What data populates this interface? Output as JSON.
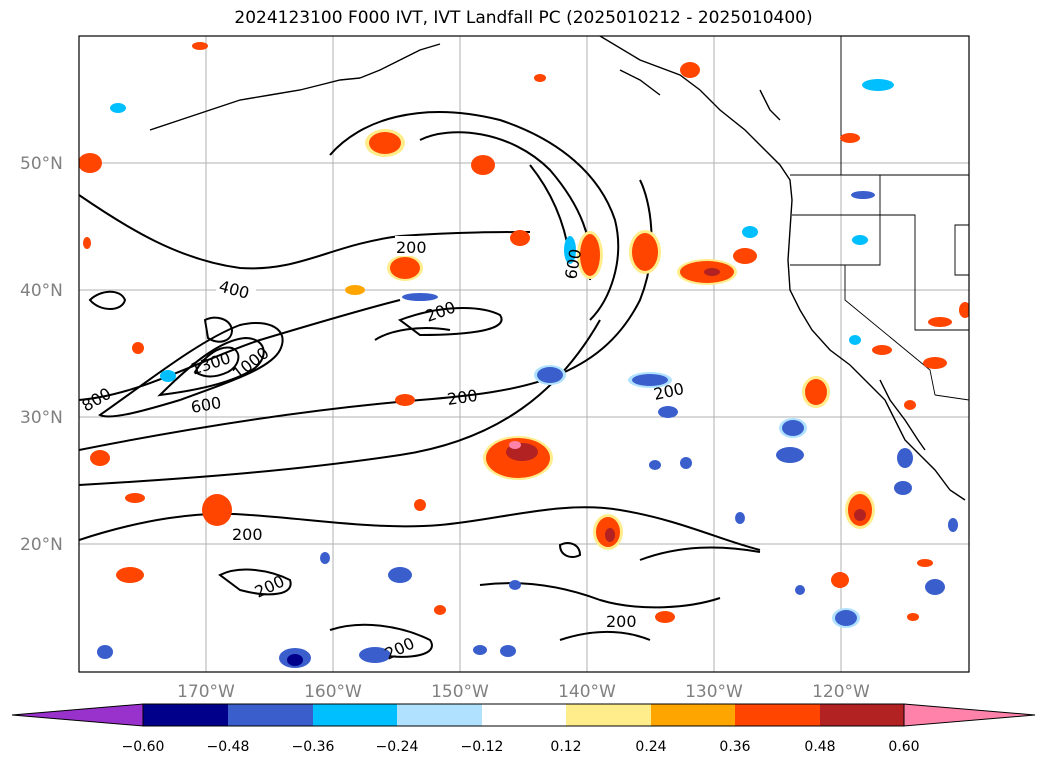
{
  "title": "2024123100 F000 IVT, IVT Landfall PC (2025010212 - 2025010400)",
  "map": {
    "lat_ticks": [
      "50°N",
      "40°N",
      "30°N",
      "20°N"
    ],
    "lon_ticks": [
      "170°W",
      "160°W",
      "150°W",
      "140°W",
      "130°W",
      "120°W"
    ],
    "extent": {
      "lon_min": -180,
      "lon_max": -110,
      "lat_min": 10,
      "lat_max": 60
    },
    "gridlines": true
  },
  "contour_labels": [
    "200",
    "400",
    "1300",
    "1000",
    "800",
    "600",
    "200",
    "200",
    "200",
    "200",
    "200",
    "200",
    "200",
    "600"
  ],
  "colorbar": {
    "ticks": [
      "−0.60",
      "−0.48",
      "−0.36",
      "−0.24",
      "−0.12",
      "0.12",
      "0.24",
      "0.36",
      "0.48",
      "0.60"
    ],
    "colors": [
      "#9932cc",
      "#00008b",
      "#3a5fcd",
      "#00bfff",
      "#b0e2ff",
      "#ffffff",
      "#ffec8b",
      "#ffa500",
      "#ff4500",
      "#b22222",
      "#ff82ab"
    ]
  }
}
